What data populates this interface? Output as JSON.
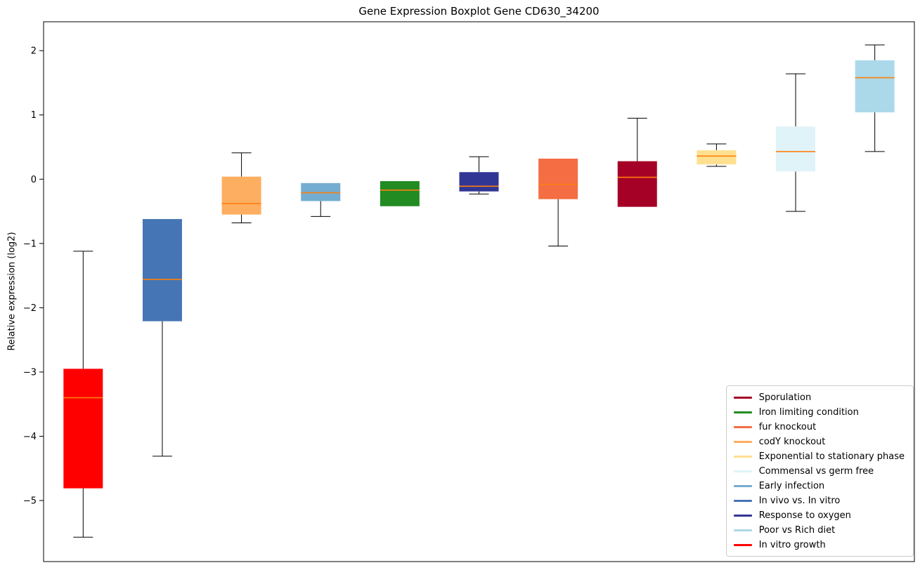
{
  "chart_data": {
    "type": "boxplot",
    "title": "Gene Expression Boxplot Gene CD630_34200",
    "ylabel": "Relative expression (log2)",
    "xlabel": "",
    "ylim": [
      -5.95,
      2.45
    ],
    "yticks": [
      2,
      1,
      0,
      -1,
      -2,
      -3,
      -4,
      -5
    ],
    "grid": false,
    "legend_position": "lower right",
    "median_color": "#ff7f0e",
    "axis_color": "#000000",
    "background_color": "#ffffff",
    "boxes": [
      {
        "label": "In vitro growth",
        "color": "#ff0000",
        "whislo": -5.57,
        "q1": -4.81,
        "med": -3.4,
        "q3": -2.95,
        "whishi": -1.12
      },
      {
        "label": "In vivo vs. In vitro",
        "color": "#4575b4",
        "whislo": -4.31,
        "q1": -2.21,
        "med": -1.56,
        "q3": -0.62,
        "whishi": -0.62
      },
      {
        "label": "codY knockout",
        "color": "#fdae61",
        "whislo": -0.68,
        "q1": -0.55,
        "med": -0.38,
        "q3": 0.04,
        "whishi": 0.41
      },
      {
        "label": "Early infection",
        "color": "#74add1",
        "whislo": -0.58,
        "q1": -0.34,
        "med": -0.21,
        "q3": -0.06,
        "whishi": -0.06
      },
      {
        "label": "Iron limiting condition",
        "color": "#228b22",
        "whislo": -0.42,
        "q1": -0.42,
        "med": -0.17,
        "q3": -0.03,
        "whishi": -0.03
      },
      {
        "label": "Response to oxygen",
        "color": "#313695",
        "whislo": -0.23,
        "q1": -0.19,
        "med": -0.11,
        "q3": 0.11,
        "whishi": 0.35
      },
      {
        "label": "fur knockout",
        "color": "#f46d43",
        "whislo": -1.04,
        "q1": -0.31,
        "med": -0.08,
        "q3": 0.32,
        "whishi": 0.32
      },
      {
        "label": "Sporulation",
        "color": "#a50026",
        "whislo": -0.43,
        "q1": -0.43,
        "med": 0.03,
        "q3": 0.28,
        "whishi": 0.95
      },
      {
        "label": "Exponential to stationary phase",
        "color": "#fee090",
        "whislo": 0.2,
        "q1": 0.23,
        "med": 0.36,
        "q3": 0.45,
        "whishi": 0.55
      },
      {
        "label": "Commensal vs germ free",
        "color": "#e0f3f8",
        "whislo": -0.5,
        "q1": 0.12,
        "med": 0.43,
        "q3": 0.82,
        "whishi": 1.64
      },
      {
        "label": "Poor vs Rich diet",
        "color": "#abd9e9",
        "whislo": 0.43,
        "q1": 1.04,
        "med": 1.58,
        "q3": 1.85,
        "whishi": 2.09
      }
    ],
    "legend": [
      {
        "label": "Sporulation",
        "color": "#a50026"
      },
      {
        "label": "Iron limiting condition",
        "color": "#228b22"
      },
      {
        "label": "fur knockout",
        "color": "#f46d43"
      },
      {
        "label": "codY knockout",
        "color": "#fdae61"
      },
      {
        "label": "Exponential to stationary phase",
        "color": "#fee090"
      },
      {
        "label": "Commensal vs germ free",
        "color": "#e0f3f8"
      },
      {
        "label": "Early infection",
        "color": "#74add1"
      },
      {
        "label": "In vivo vs. In vitro",
        "color": "#4575b4"
      },
      {
        "label": "Response to oxygen",
        "color": "#313695"
      },
      {
        "label": "Poor vs Rich diet",
        "color": "#abd9e9"
      },
      {
        "label": "In vitro growth",
        "color": "#ff0000"
      }
    ]
  }
}
